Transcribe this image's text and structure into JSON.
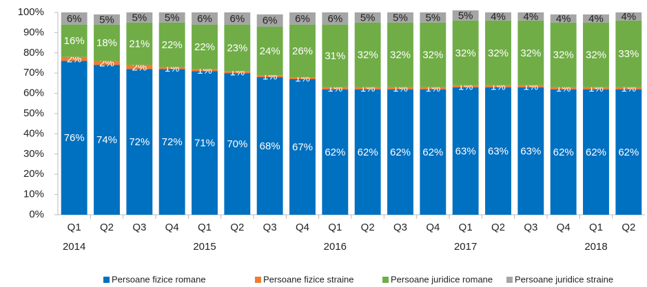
{
  "chart_data": {
    "type": "bar",
    "stacked": true,
    "categories": [
      "Q1",
      "Q2",
      "Q3",
      "Q4",
      "Q1",
      "Q2",
      "Q3",
      "Q4",
      "Q1",
      "Q2",
      "Q3",
      "Q4",
      "Q1",
      "Q2",
      "Q3",
      "Q4",
      "Q1",
      "Q2"
    ],
    "groups": [
      "2014",
      null,
      null,
      null,
      "2015",
      null,
      null,
      null,
      "2016",
      null,
      null,
      null,
      "2017",
      null,
      null,
      null,
      "2018",
      null
    ],
    "series": [
      {
        "name": "Persoane fizice romane",
        "color": "#0070c0",
        "label_color": "#ffffff",
        "values": [
          76,
          74,
          72,
          72,
          71,
          70,
          68,
          67,
          62,
          62,
          62,
          62,
          63,
          63,
          63,
          62,
          62,
          62
        ],
        "value_labels": [
          "76%",
          "74%",
          "72%",
          "72%",
          "71%",
          "70%",
          "68%",
          "67%",
          "62%",
          "62%",
          "62%",
          "62%",
          "63%",
          "63%",
          "63%",
          "62%",
          "62%",
          "62%"
        ]
      },
      {
        "name": "Persoane fizice straine",
        "color": "#ed7d31",
        "label_color": "#ffffff",
        "values": [
          2,
          2,
          2,
          1,
          1,
          1,
          1,
          1,
          1,
          1,
          1,
          1,
          1,
          1,
          1,
          1,
          1,
          1
        ],
        "value_labels": [
          "2%",
          "2%",
          "2%",
          "1%",
          "1%",
          "1%",
          "1%",
          "1%",
          "1%",
          "1%",
          "1%",
          "1%",
          "1%",
          "1%",
          "1%",
          "1%",
          "1%",
          "1%"
        ]
      },
      {
        "name": "Persoane juridice romane",
        "color": "#70ad47",
        "label_color": "#ffffff",
        "values": [
          16,
          18,
          21,
          22,
          22,
          23,
          24,
          26,
          31,
          32,
          32,
          32,
          32,
          32,
          32,
          32,
          32,
          33
        ],
        "value_labels": [
          "16%",
          "18%",
          "21%",
          "22%",
          "22%",
          "23%",
          "24%",
          "26%",
          "31%",
          "32%",
          "32%",
          "32%",
          "32%",
          "32%",
          "32%",
          "32%",
          "32%",
          "33%"
        ]
      },
      {
        "name": "Persoane juridice straine",
        "color": "#a5a5a5",
        "label_color": "#222222",
        "values": [
          6,
          5,
          5,
          5,
          6,
          6,
          6,
          6,
          6,
          5,
          5,
          5,
          5,
          4,
          4,
          4,
          4,
          4
        ],
        "value_labels": [
          "6%",
          "5%",
          "5%",
          "5%",
          "6%",
          "6%",
          "6%",
          "6%",
          "6%",
          "5%",
          "5%",
          "5%",
          "5%",
          "4%",
          "4%",
          "4%",
          "4%",
          "4%"
        ]
      }
    ],
    "ylim": [
      0,
      100
    ],
    "yticks": [
      {
        "value": 0,
        "label": "0%"
      },
      {
        "value": 10,
        "label": "10%"
      },
      {
        "value": 20,
        "label": "20%"
      },
      {
        "value": 30,
        "label": "30%"
      },
      {
        "value": 40,
        "label": "40%"
      },
      {
        "value": 50,
        "label": "50%"
      },
      {
        "value": 60,
        "label": "60%"
      },
      {
        "value": 70,
        "label": "70%"
      },
      {
        "value": 80,
        "label": "80%"
      },
      {
        "value": 90,
        "label": "90%"
      },
      {
        "value": 100,
        "label": "100%"
      }
    ],
    "legend": "bottom"
  }
}
